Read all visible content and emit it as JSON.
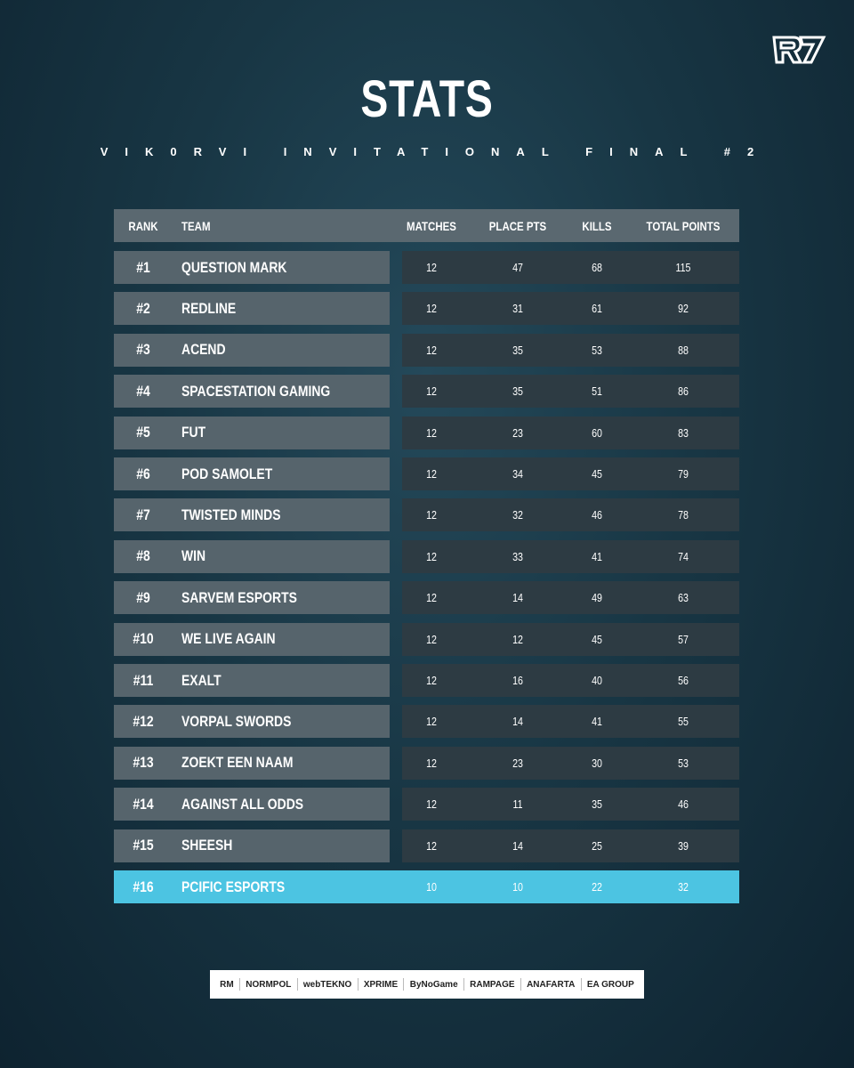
{
  "header": {
    "title": "STATS",
    "subtitle": "VIK0RVI INVITATIONAL FINAL #2"
  },
  "table": {
    "columns": [
      "RANK",
      "TEAM",
      "MATCHES",
      "PLACE PTS",
      "KILLS",
      "TOTAL POINTS"
    ],
    "rows": [
      [
        "#1",
        "QUESTION MARK",
        12,
        47,
        68,
        115
      ],
      [
        "#2",
        "REDLINE",
        12,
        31,
        61,
        92
      ],
      [
        "#3",
        "ACEND",
        12,
        35,
        53,
        88
      ],
      [
        "#4",
        "SPACESTATION GAMING",
        12,
        35,
        51,
        86
      ],
      [
        "#5",
        "FUT",
        12,
        23,
        60,
        83
      ],
      [
        "#6",
        "POD SAMOLET",
        12,
        34,
        45,
        79
      ],
      [
        "#7",
        "TWISTED MINDS",
        12,
        32,
        46,
        78
      ],
      [
        "#8",
        "WIN",
        12,
        33,
        41,
        74
      ],
      [
        "#9",
        "SARVEM ESPORTS",
        12,
        14,
        49,
        63
      ],
      [
        "#10",
        "WE LIVE AGAIN",
        12,
        12,
        45,
        57
      ],
      [
        "#11",
        "EXALT",
        12,
        16,
        40,
        56
      ],
      [
        "#12",
        "VORPAL SWORDS",
        12,
        14,
        41,
        55
      ],
      [
        "#13",
        "ZOEKT EEN NAAM",
        12,
        23,
        30,
        53
      ],
      [
        "#14",
        "AGAINST ALL ODDS",
        12,
        11,
        35,
        46
      ],
      [
        "#15",
        "SHEESH",
        12,
        14,
        25,
        39
      ],
      [
        "#16",
        "PCIFIC ESPORTS",
        10,
        10,
        22,
        32
      ]
    ]
  },
  "sponsors": [
    "RM",
    "NORMPOL",
    "webTEKNO",
    "XPRIME",
    "ByNoGame",
    "RAMPAGE",
    "ANAFARTA",
    "EA GROUP"
  ]
}
